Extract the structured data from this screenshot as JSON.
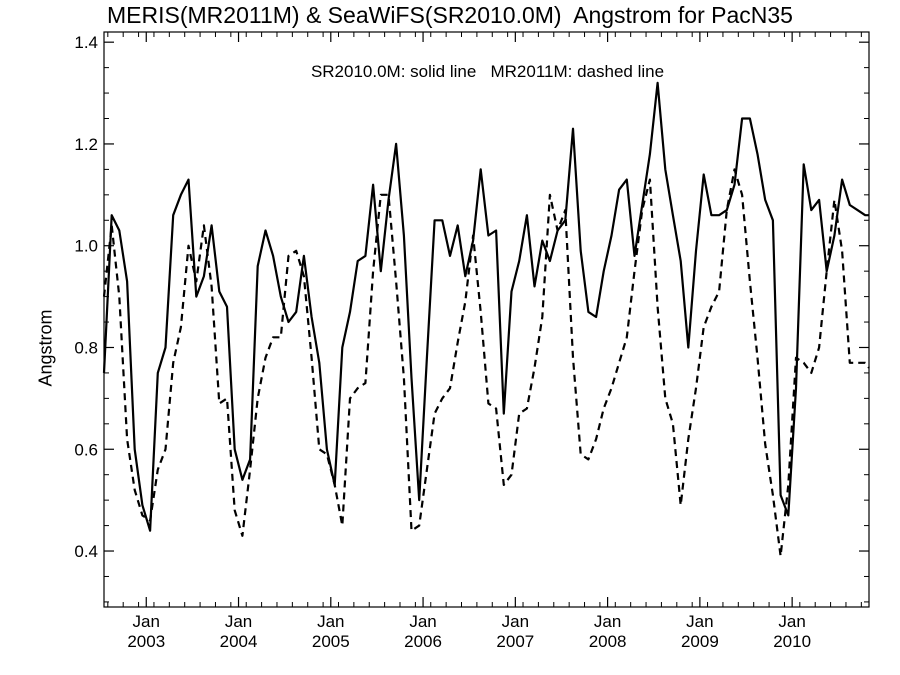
{
  "chart_data": {
    "type": "line",
    "title": "MERIS(MR2011M) & SeaWiFS(SR2010.0M)  Angstrom for PacN35",
    "annotation": "SR2010.0M: solid line   MR2011M: dashed line",
    "xlabel": "",
    "ylabel": "Angstrom",
    "xlim": [
      2002.542,
      2010.833
    ],
    "ylim": [
      0.29,
      1.42
    ],
    "yticks": [
      0.4,
      0.6,
      0.8,
      1.0,
      1.2,
      1.4
    ],
    "ytick_labels": [
      "0.4",
      "0.6",
      "0.8",
      "1.0",
      "1.2",
      "1.4"
    ],
    "xticks": [
      {
        "month": "Jan",
        "year": "2003",
        "x": 2003.0
      },
      {
        "month": "Jan",
        "year": "2004",
        "x": 2004.0
      },
      {
        "month": "Jan",
        "year": "2005",
        "x": 2005.0
      },
      {
        "month": "Jan",
        "year": "2006",
        "x": 2006.0
      },
      {
        "month": "Jan",
        "year": "2007",
        "x": 2007.0
      },
      {
        "month": "Jan",
        "year": "2008",
        "x": 2008.0
      },
      {
        "month": "Jan",
        "year": "2009",
        "x": 2009.0
      },
      {
        "month": "Jan",
        "year": "2010",
        "x": 2010.0
      }
    ],
    "grid": false,
    "series": [
      {
        "name": "SR2010.0M",
        "style": "solid",
        "color": "#000000",
        "x": [
          2002.542,
          2002.625,
          2002.708,
          2002.792,
          2002.875,
          2002.958,
          2003.042,
          2003.125,
          2003.208,
          2003.292,
          2003.375,
          2003.458,
          2003.542,
          2003.625,
          2003.708,
          2003.792,
          2003.875,
          2003.958,
          2004.042,
          2004.125,
          2004.208,
          2004.292,
          2004.375,
          2004.458,
          2004.542,
          2004.625,
          2004.708,
          2004.792,
          2004.875,
          2004.958,
          2005.042,
          2005.125,
          2005.208,
          2005.292,
          2005.375,
          2005.458,
          2005.542,
          2005.625,
          2005.708,
          2005.792,
          2005.875,
          2005.958,
          2006.042,
          2006.125,
          2006.208,
          2006.292,
          2006.375,
          2006.458,
          2006.542,
          2006.625,
          2006.708,
          2006.792,
          2006.875,
          2006.958,
          2007.042,
          2007.125,
          2007.208,
          2007.292,
          2007.375,
          2007.458,
          2007.542,
          2007.625,
          2007.708,
          2007.792,
          2007.875,
          2007.958,
          2008.042,
          2008.125,
          2008.208,
          2008.292,
          2008.375,
          2008.458,
          2008.542,
          2008.625,
          2008.708,
          2008.792,
          2008.875,
          2008.958,
          2009.042,
          2009.125,
          2009.208,
          2009.292,
          2009.375,
          2009.458,
          2009.542,
          2009.625,
          2009.708,
          2009.792,
          2009.875,
          2009.958,
          2010.042,
          2010.125,
          2010.208,
          2010.292,
          2010.375,
          2010.458,
          2010.542,
          2010.625,
          2010.708,
          2010.792,
          2010.833
        ],
        "y": [
          0.75,
          1.06,
          1.03,
          0.93,
          0.6,
          0.49,
          0.44,
          0.75,
          0.8,
          1.06,
          1.1,
          1.13,
          0.9,
          0.94,
          1.04,
          0.91,
          0.88,
          0.6,
          0.54,
          0.58,
          0.96,
          1.03,
          0.98,
          0.9,
          0.85,
          0.87,
          0.98,
          0.86,
          0.77,
          0.6,
          0.53,
          0.8,
          0.87,
          0.97,
          0.98,
          1.12,
          0.95,
          1.09,
          1.2,
          1.02,
          0.74,
          0.5,
          0.78,
          1.05,
          1.05,
          0.98,
          1.04,
          0.94,
          1.01,
          1.15,
          1.02,
          1.03,
          0.67,
          0.91,
          0.97,
          1.06,
          0.92,
          1.01,
          0.97,
          1.03,
          1.05,
          1.23,
          0.99,
          0.87,
          0.86,
          0.95,
          1.02,
          1.11,
          1.13,
          0.98,
          1.08,
          1.18,
          1.32,
          1.15,
          1.06,
          0.97,
          0.8,
          0.99,
          1.14,
          1.06,
          1.06,
          1.07,
          1.12,
          1.25,
          1.25,
          1.18,
          1.09,
          1.05,
          0.51,
          0.47,
          0.72,
          1.16,
          1.07,
          1.09,
          0.95,
          1.02,
          1.13,
          1.08,
          1.07,
          1.06,
          1.06
        ]
      },
      {
        "name": "MR2011M",
        "style": "dashed",
        "color": "#000000",
        "x": [
          2002.542,
          2002.625,
          2002.708,
          2002.792,
          2002.875,
          2002.958,
          2003.042,
          2003.125,
          2003.208,
          2003.292,
          2003.375,
          2003.458,
          2003.542,
          2003.625,
          2003.708,
          2003.792,
          2003.875,
          2003.958,
          2004.042,
          2004.125,
          2004.208,
          2004.292,
          2004.375,
          2004.458,
          2004.542,
          2004.625,
          2004.708,
          2004.792,
          2004.875,
          2004.958,
          2005.042,
          2005.125,
          2005.208,
          2005.292,
          2005.375,
          2005.458,
          2005.542,
          2005.625,
          2005.708,
          2005.792,
          2005.875,
          2005.958,
          2006.042,
          2006.125,
          2006.208,
          2006.292,
          2006.375,
          2006.458,
          2006.542,
          2006.625,
          2006.708,
          2006.792,
          2006.875,
          2006.958,
          2007.042,
          2007.125,
          2007.208,
          2007.292,
          2007.375,
          2007.458,
          2007.542,
          2007.625,
          2007.708,
          2007.792,
          2007.875,
          2007.958,
          2008.042,
          2008.125,
          2008.208,
          2008.292,
          2008.375,
          2008.458,
          2008.542,
          2008.625,
          2008.708,
          2008.792,
          2008.875,
          2008.958,
          2009.042,
          2009.125,
          2009.208,
          2009.292,
          2009.375,
          2009.458,
          2009.542,
          2009.625,
          2009.708,
          2009.792,
          2009.875,
          2009.958,
          2010.042,
          2010.125,
          2010.208,
          2010.292,
          2010.375,
          2010.458,
          2010.542,
          2010.625,
          2010.708,
          2010.792,
          2010.833
        ],
        "y": [
          0.9,
          1.04,
          0.9,
          0.62,
          0.52,
          0.47,
          0.46,
          0.56,
          0.6,
          0.77,
          0.84,
          1.0,
          0.93,
          1.04,
          0.92,
          0.69,
          0.7,
          0.48,
          0.43,
          0.56,
          0.7,
          0.78,
          0.82,
          0.82,
          0.98,
          0.99,
          0.94,
          0.78,
          0.6,
          0.59,
          0.53,
          0.45,
          0.7,
          0.72,
          0.73,
          0.95,
          1.1,
          1.1,
          0.93,
          0.74,
          0.44,
          0.45,
          0.56,
          0.67,
          0.7,
          0.72,
          0.81,
          0.89,
          1.02,
          0.87,
          0.69,
          0.68,
          0.53,
          0.55,
          0.67,
          0.68,
          0.76,
          0.86,
          1.1,
          1.03,
          1.07,
          0.78,
          0.59,
          0.58,
          0.62,
          0.68,
          0.72,
          0.77,
          0.82,
          0.95,
          1.07,
          1.13,
          0.88,
          0.7,
          0.65,
          0.49,
          0.62,
          0.72,
          0.84,
          0.88,
          0.91,
          1.07,
          1.15,
          1.1,
          0.93,
          0.78,
          0.61,
          0.51,
          0.39,
          0.53,
          0.78,
          0.77,
          0.75,
          0.8,
          0.95,
          1.09,
          0.99,
          0.77,
          0.77,
          0.77,
          0.76
        ]
      }
    ]
  }
}
